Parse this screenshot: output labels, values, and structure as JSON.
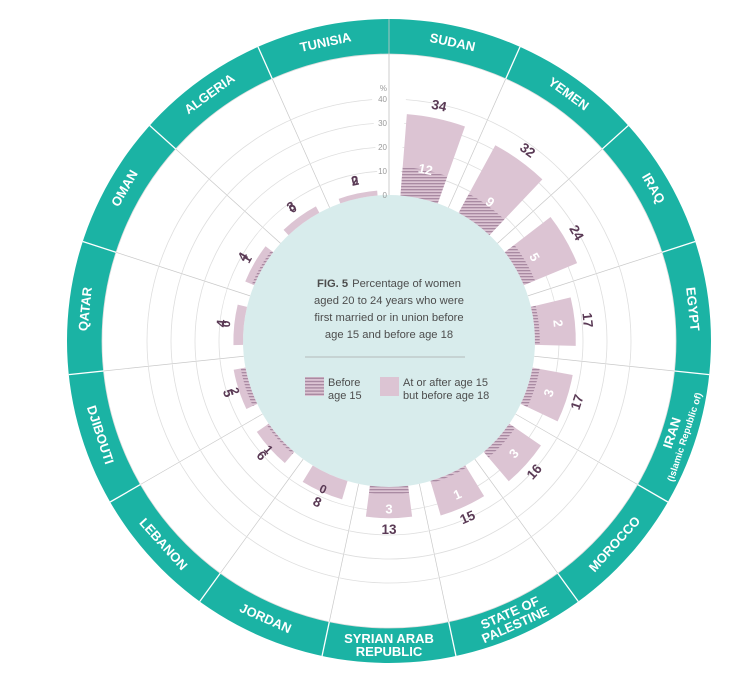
{
  "colors": {
    "ring": "#1bb3a4",
    "center": "#d8ecec",
    "bar_total": "#dcc4d3",
    "bar_under15": "#b497ad",
    "label": "#5a3a55",
    "grid": "#dedede"
  },
  "center": {
    "fig_label": "FIG. 5",
    "lines": [
      "Percentage of women",
      "aged 20 to 24 years who were",
      "first married or in union before",
      "age 15 and before age 18"
    ],
    "legend_before_line1": "Before",
    "legend_before_line2": "age 15",
    "legend_after_line1": "At or after age 15",
    "legend_after_line2": "but before age 18"
  },
  "chart_data": {
    "type": "bar",
    "layout": "radial",
    "axis_unit": "%",
    "ylim": [
      0,
      40
    ],
    "ticks": [
      "40",
      "30",
      "20",
      "10",
      "0"
    ],
    "categories": [
      "SUDAN",
      "YEMEN",
      "IRAQ",
      "EGYPT",
      "IRAN (Islamic Republic of)",
      "MOROCCO",
      "STATE OF PALESTINE",
      "SYRIAN ARAB REPUBLIC",
      "JORDAN",
      "LEBANON",
      "DJIBOUTI",
      "QATAR",
      "OMAN",
      "ALGERIA",
      "TUNISIA"
    ],
    "series": [
      {
        "name": "Before age 15",
        "values": [
          12,
          9,
          5,
          2,
          3,
          3,
          1,
          3,
          0,
          1,
          2,
          0,
          1,
          0,
          0
        ]
      },
      {
        "name": "At or after age 15 but before age 18",
        "values": [
          22,
          23,
          19,
          15,
          14,
          13,
          14,
          10,
          8,
          5,
          3,
          4,
          3,
          3,
          2
        ]
      }
    ],
    "totals": [
      34,
      32,
      24,
      17,
      17,
      16,
      15,
      13,
      8,
      6,
      5,
      4,
      4,
      3,
      2
    ],
    "ring_labels": [
      [
        "SUDAN"
      ],
      [
        "YEMEN"
      ],
      [
        "IRAQ"
      ],
      [
        "EGYPT"
      ],
      [
        "IRAN",
        "(Islamic Republic of)"
      ],
      [
        "MOROCCO"
      ],
      [
        "STATE OF",
        "PALESTINE"
      ],
      [
        "SYRIAN ARAB",
        "REPUBLIC"
      ],
      [
        "JORDAN"
      ],
      [
        "LEBANON"
      ],
      [
        "DJIBOUTI"
      ],
      [
        "QATAR"
      ],
      [
        "OMAN"
      ],
      [
        "ALGERIA"
      ],
      [
        "TUNISIA"
      ]
    ]
  }
}
